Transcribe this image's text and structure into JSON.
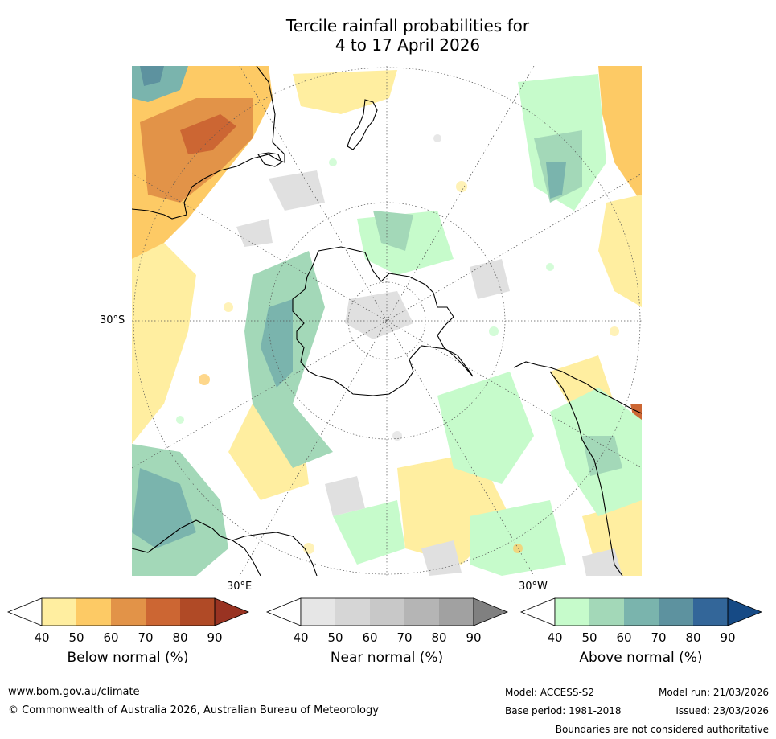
{
  "title": {
    "line1": "Tercile rainfall probabilities for",
    "line2": "4 to 17 April 2026"
  },
  "map": {
    "projection": "south-polar-stereographic",
    "labels": {
      "lat": "30°S",
      "lon_east": "30°E",
      "lon_west": "30°W"
    }
  },
  "colorbars": [
    {
      "name": "below",
      "label": "Below normal (%)",
      "ticks": [
        "40",
        "50",
        "60",
        "70",
        "80",
        "90"
      ],
      "colors": [
        "#ffffff",
        "#ffeea0",
        "#fdca65",
        "#e29348",
        "#cc6633",
        "#b04a26",
        "#993322"
      ]
    },
    {
      "name": "near",
      "label": "Near normal (%)",
      "ticks": [
        "40",
        "50",
        "60",
        "70",
        "80",
        "90"
      ],
      "colors": [
        "#ffffff",
        "#e6e6e6",
        "#d6d6d6",
        "#c8c8c8",
        "#b5b5b5",
        "#a1a1a1",
        "#808080"
      ]
    },
    {
      "name": "above",
      "label": "Above normal (%)",
      "ticks": [
        "40",
        "50",
        "60",
        "70",
        "80",
        "90"
      ],
      "colors": [
        "#ffffff",
        "#c6fbcb",
        "#a3d8b8",
        "#7ab4ad",
        "#5d929f",
        "#336699",
        "#164a85"
      ]
    }
  ],
  "footer": {
    "website": "www.bom.gov.au/climate",
    "copyright": "© Commonwealth of Australia 2026, Australian Bureau of Meteorology",
    "model": "Model: ACCESS-S2",
    "base_period": "Base period: 1981-2018",
    "model_run": "Model run: 21/03/2026",
    "issued": "Issued: 23/03/2026",
    "disclaimer": "Boundaries are not considered authoritative"
  }
}
